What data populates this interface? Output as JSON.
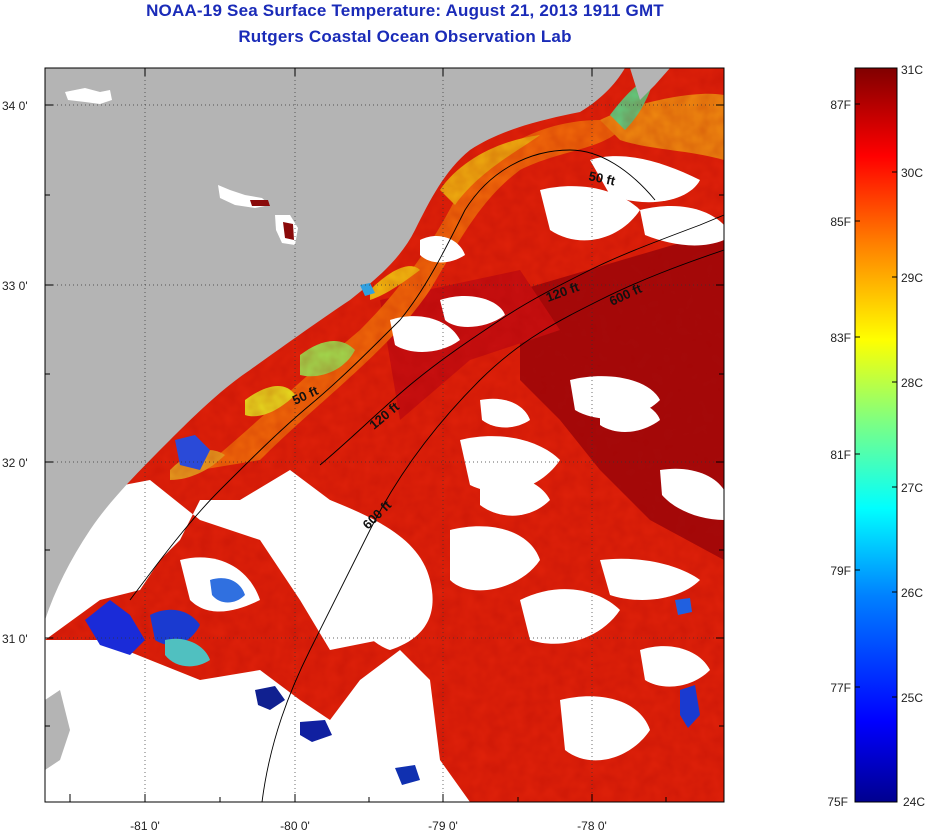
{
  "title": {
    "line1": "NOAA-19 Sea Surface Temperature:  August 21, 2013 1911 GMT",
    "line2": "Rutgers Coastal Ocean Observation Lab"
  },
  "map": {
    "lat_labels": [
      "34 0'",
      "33 0'",
      "32 0'",
      "31 0'"
    ],
    "lon_labels": [
      "-81 0'",
      "-80 0'",
      "-79 0'",
      "-78 0'"
    ],
    "contour_labels": [
      "50 ft",
      "120 ft",
      "600 ft",
      "50 ft",
      "120 ft",
      "600 ft"
    ],
    "colors": {
      "land": "#b4b4b4",
      "cloud": "#ffffff"
    }
  },
  "colorbar": {
    "celsius_labels": [
      "31C",
      "30C",
      "29C",
      "28C",
      "27C",
      "26C",
      "25C",
      "24C"
    ],
    "fahrenheit_labels": [
      "87F",
      "85F",
      "83F",
      "81F",
      "79F",
      "77F",
      "75F"
    ],
    "range_c": [
      24,
      31
    ],
    "colormap": [
      "#00008f",
      "#0000ff",
      "#0080ff",
      "#00ffff",
      "#80ff80",
      "#ffff00",
      "#ff8000",
      "#ff0000",
      "#800000"
    ]
  }
}
